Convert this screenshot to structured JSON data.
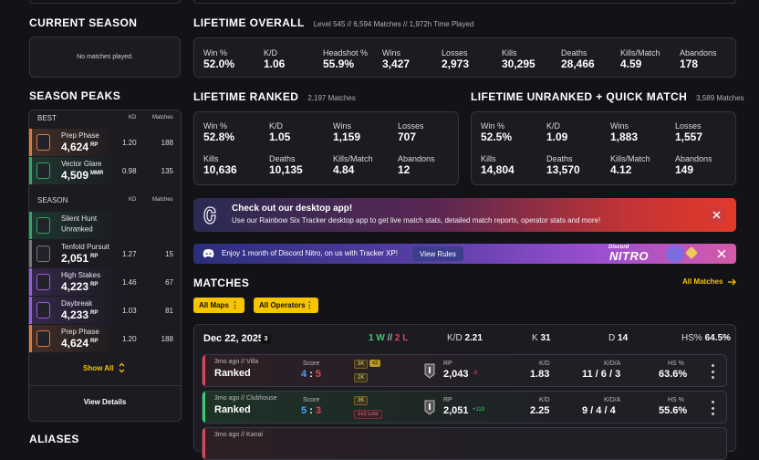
{
  "current_season": {
    "title": "CURRENT SEASON",
    "empty": "No matches played."
  },
  "lifetime_overall": {
    "title": "LIFETIME OVERALL",
    "subtitle": "Level 545 // 6,594 Matches // 1,972h Time Played",
    "stats": [
      {
        "label": "Win %",
        "value": "52.0%"
      },
      {
        "label": "K/D",
        "value": "1.06"
      },
      {
        "label": "Headshot %",
        "value": "55.9%"
      },
      {
        "label": "Wins",
        "value": "3,427"
      },
      {
        "label": "Losses",
        "value": "2,973"
      },
      {
        "label": "Kills",
        "value": "30,295"
      },
      {
        "label": "Deaths",
        "value": "28,466"
      },
      {
        "label": "Kills/Match",
        "value": "4.59"
      },
      {
        "label": "Abandons",
        "value": "178"
      }
    ]
  },
  "season_peaks": {
    "title": "SEASON PEAKS",
    "best_header": "BEST",
    "season_header": "SEASON",
    "kd_header": "KD",
    "matches_header": "Matches",
    "best": [
      {
        "name": "Prep Phase",
        "rp": "4,624",
        "unit": "RP",
        "kd": "1.20",
        "matches": "188",
        "color": "#e07a3a",
        "badge": "2400"
      },
      {
        "name": "Vector Glare",
        "rp": "4,509",
        "unit": "MMR",
        "kd": "0.98",
        "matches": "135",
        "color": "#2ea86a",
        "badge": ""
      }
    ],
    "season": [
      {
        "name": "Silent Hunt",
        "rp": "Unranked",
        "unit": "",
        "kd": "",
        "matches": "",
        "color": "#2ea86a",
        "badge": ""
      },
      {
        "name": "Tenfold Pursuit",
        "rp": "2,051",
        "unit": "RP",
        "kd": "1.27",
        "matches": "15",
        "color": "#777",
        "badge": ""
      },
      {
        "name": "High Stakes",
        "rp": "4,223",
        "unit": "RP",
        "kd": "1.46",
        "matches": "67",
        "color": "#9b5de5",
        "badge": ""
      },
      {
        "name": "Daybreak",
        "rp": "4,233",
        "unit": "RP",
        "kd": "1.03",
        "matches": "81",
        "color": "#9b5de5",
        "badge": ""
      },
      {
        "name": "Prep Phase",
        "rp": "4,624",
        "unit": "RP",
        "kd": "1.20",
        "matches": "188",
        "color": "#e07a3a",
        "badge": "2400"
      }
    ],
    "show_all": "Show All",
    "view_details": "View Details"
  },
  "aliases_title": "ALIASES",
  "lifetime_ranked": {
    "title": "LIFETIME RANKED",
    "subtitle": "2,197 Matches",
    "stats": [
      {
        "label": "Win %",
        "value": "52.8%"
      },
      {
        "label": "K/D",
        "value": "1.05"
      },
      {
        "label": "Wins",
        "value": "1,159"
      },
      {
        "label": "Losses",
        "value": "707"
      },
      {
        "label": "Kills",
        "value": "10,636"
      },
      {
        "label": "Deaths",
        "value": "10,135"
      },
      {
        "label": "Kills/Match",
        "value": "4.84"
      },
      {
        "label": "Abandons",
        "value": "12"
      }
    ]
  },
  "lifetime_unranked": {
    "title": "LIFETIME UNRANKED + QUICK MATCH",
    "subtitle": "3,589 Matches",
    "stats": [
      {
        "label": "Win %",
        "value": "52.5%"
      },
      {
        "label": "K/D",
        "value": "1.09"
      },
      {
        "label": "Wins",
        "value": "1,883"
      },
      {
        "label": "Losses",
        "value": "1,557"
      },
      {
        "label": "Kills",
        "value": "14,804"
      },
      {
        "label": "Deaths",
        "value": "13,570"
      },
      {
        "label": "Kills/Match",
        "value": "4.12"
      },
      {
        "label": "Abandons",
        "value": "149"
      }
    ]
  },
  "desktop_banner": {
    "title": "Check out our desktop app!",
    "text": "Use our Rainbow Six Tracker desktop app to get live match stats, detailed match reports, operator stats and more!"
  },
  "nitro_banner": {
    "text": "Enjoy 1 month of Discord Nitro, on us with Tracker XP!",
    "button": "View Rules",
    "brand_top": "Discord",
    "brand": "NITRO"
  },
  "matches": {
    "title": "MATCHES",
    "filter_maps": "All Maps",
    "filter_operators": "All Operators",
    "all_matches": "All Matches",
    "day": {
      "date": "Dec 22, 2025",
      "count": "3",
      "wins": "1 W",
      "sep": "//",
      "losses": "2 L",
      "kd_label": "K/D",
      "kd": "2.21",
      "k_label": "K",
      "k": "31",
      "d_label": "D",
      "d": "14",
      "hs_label": "HS%",
      "hs": "64.5%"
    },
    "rows": [
      {
        "meta": "3mo ago // Villa",
        "mode": "Ranked",
        "score_label": "Score",
        "score_a": "4",
        "score_sep": ":",
        "score_b": "5",
        "tag1": "3K",
        "tag_x": "x2",
        "tag2": "2K",
        "rp_label": "RP",
        "rp": "2,043",
        "rp_delta": "-8",
        "kd_label": "K/D",
        "kd": "1.83",
        "kda_label": "K/D/A",
        "kda": "11 / 6 / 3",
        "hs_label": "HS %",
        "hs": "63.6%",
        "result": "loss"
      },
      {
        "meta": "3mo ago // Clubhouse",
        "mode": "Ranked",
        "score_label": "Score",
        "score_a": "5",
        "score_sep": ":",
        "score_b": "3",
        "tag1": "3K",
        "tag_x": "",
        "tag2": "1v2 Lost",
        "rp_label": "RP",
        "rp": "2,051",
        "rp_delta": "+119",
        "kd_label": "K/D",
        "kd": "2.25",
        "kda_label": "K/D/A",
        "kda": "9 / 4 / 4",
        "hs_label": "HS %",
        "hs": "55.6%",
        "result": "win"
      },
      {
        "meta": "3mo ago // Kanal",
        "mode": "",
        "score_label": "",
        "score_a": "",
        "score_sep": "",
        "score_b": "",
        "tag1": "",
        "tag_x": "",
        "tag2": "",
        "rp_label": "",
        "rp": "",
        "rp_delta": "",
        "kd_label": "",
        "kd": "",
        "kda_label": "",
        "kda": "",
        "hs_label": "",
        "hs": "",
        "result": "loss"
      }
    ]
  },
  "colors": {
    "accent": "#f7c400",
    "win": "#3ccf6e",
    "loss": "#e0455a",
    "blue": "#4aa3ff"
  }
}
